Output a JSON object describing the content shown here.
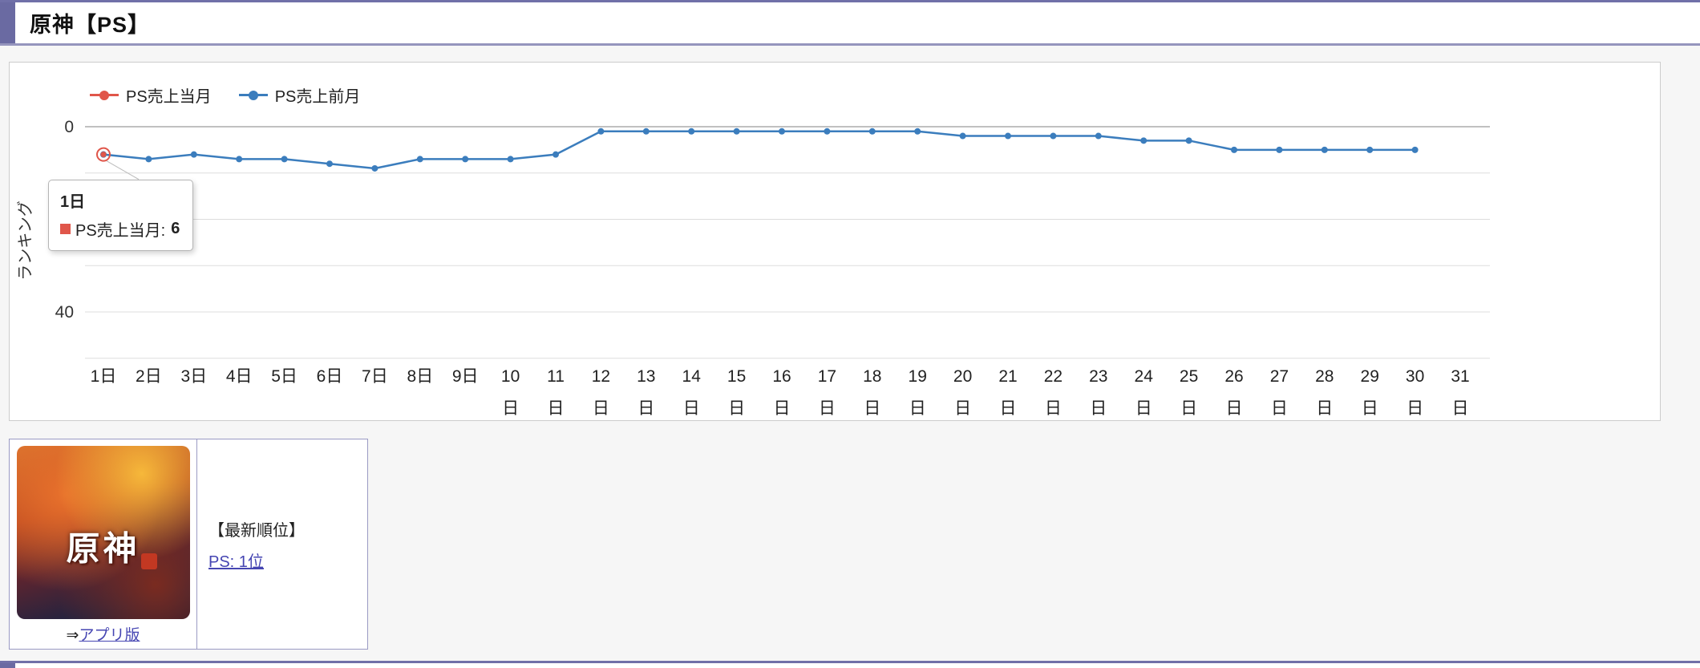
{
  "page": {
    "title": "原神【PS】",
    "accent_color": "#6a6aa2"
  },
  "chart": {
    "legend": [
      {
        "label": "PS売上当月",
        "color": "#e0564a"
      },
      {
        "label": "PS売上前月",
        "color": "#3b7dbd"
      }
    ],
    "tooltip": {
      "title": "1日",
      "label": "PS売上当月:",
      "value": "6",
      "marker_color": "#e0564a"
    }
  },
  "chart_data": {
    "type": "line",
    "title": "",
    "xlabel": "",
    "ylabel": "ランキング",
    "axis_inverted": true,
    "ylim": [
      0,
      50
    ],
    "y_ticks": [
      0,
      40
    ],
    "grid_step": 10,
    "legend_position": "top-left",
    "categories": [
      "1日",
      "2日",
      "3日",
      "4日",
      "5日",
      "6日",
      "7日",
      "8日",
      "9日",
      "10日",
      "11日",
      "12日",
      "13日",
      "14日",
      "15日",
      "16日",
      "17日",
      "18日",
      "19日",
      "20日",
      "21日",
      "22日",
      "23日",
      "24日",
      "25日",
      "26日",
      "27日",
      "28日",
      "29日",
      "30日",
      "31日"
    ],
    "series": [
      {
        "name": "PS売上当月",
        "color": "#e0564a",
        "values": [
          6,
          null,
          null,
          null,
          null,
          null,
          null,
          null,
          null,
          null,
          null,
          null,
          null,
          null,
          null,
          null,
          null,
          null,
          null,
          null,
          null,
          null,
          null,
          null,
          null,
          null,
          null,
          null,
          null,
          null,
          null
        ]
      },
      {
        "name": "PS売上前月",
        "color": "#3b7dbd",
        "values": [
          6,
          7,
          6,
          7,
          7,
          8,
          9,
          7,
          7,
          7,
          6,
          1,
          1,
          1,
          1,
          1,
          1,
          1,
          1,
          2,
          2,
          2,
          2,
          3,
          3,
          5,
          5,
          5,
          5,
          5,
          null
        ]
      }
    ],
    "active_point": {
      "series": 0,
      "index": 0
    }
  },
  "info": {
    "cover_title": "原神",
    "caption_arrow": "⇒",
    "app_link": "アプリ版",
    "rank_heading": "【最新順位】",
    "rank_link": "PS: 1位"
  }
}
